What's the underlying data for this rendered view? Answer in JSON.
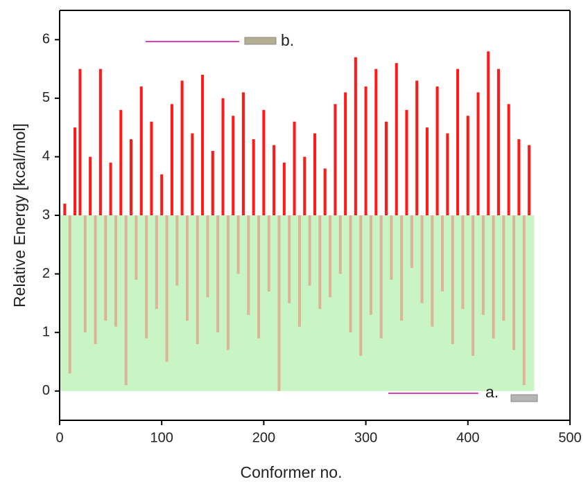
{
  "chart_data": {
    "type": "bar",
    "x_label": "Conformer no.",
    "y_label": "Relative Energy [kcal/mol]",
    "xlim": [
      0,
      500
    ],
    "ylim": [
      -0.5,
      6.5
    ],
    "xticks": [
      0,
      100,
      200,
      300,
      400,
      500
    ],
    "yticks": [
      0,
      1,
      2,
      3,
      4,
      5,
      6
    ],
    "threshold": 3,
    "color_above": "#ff1a1a",
    "color_below": "#dcb496",
    "shaded_region": {
      "xlim": [
        0,
        465
      ],
      "ylim": [
        0,
        3
      ],
      "color": "#c9f5c4"
    },
    "legend": [
      {
        "label": "b.",
        "color": "#b5ad8f",
        "line_color": "#e040c0"
      },
      {
        "label": "a.",
        "color": "#b5b5b5",
        "line_color": "#e040c0"
      }
    ],
    "x": [
      5,
      10,
      15,
      20,
      25,
      30,
      35,
      40,
      45,
      50,
      55,
      60,
      65,
      70,
      75,
      80,
      85,
      90,
      95,
      100,
      105,
      110,
      115,
      120,
      125,
      130,
      135,
      140,
      145,
      150,
      155,
      160,
      165,
      170,
      175,
      180,
      185,
      190,
      195,
      200,
      205,
      210,
      215,
      220,
      225,
      230,
      235,
      240,
      245,
      250,
      255,
      260,
      265,
      270,
      275,
      280,
      285,
      290,
      295,
      300,
      305,
      310,
      315,
      320,
      325,
      330,
      335,
      340,
      345,
      350,
      355,
      360,
      365,
      370,
      375,
      380,
      385,
      390,
      395,
      400,
      405,
      410,
      415,
      420,
      425,
      430,
      435,
      440,
      445,
      450,
      455,
      460
    ],
    "values": [
      3.2,
      0.3,
      4.5,
      5.5,
      1.0,
      4.0,
      0.8,
      5.5,
      1.2,
      3.9,
      1.1,
      4.8,
      0.1,
      4.3,
      1.9,
      5.2,
      0.9,
      4.6,
      1.4,
      3.7,
      0.5,
      4.9,
      1.8,
      5.3,
      1.2,
      4.4,
      0.8,
      5.4,
      1.6,
      4.1,
      1.0,
      5.0,
      0.7,
      4.7,
      2.0,
      5.1,
      1.3,
      4.3,
      0.9,
      4.8,
      1.7,
      4.2,
      0.0,
      3.9,
      1.5,
      4.6,
      1.1,
      4.0,
      1.8,
      4.4,
      1.4,
      3.8,
      1.6,
      4.9,
      2.0,
      5.1,
      1.0,
      5.7,
      0.6,
      5.2,
      1.3,
      5.5,
      0.9,
      4.6,
      1.9,
      5.6,
      1.2,
      4.8,
      2.1,
      5.3,
      1.5,
      4.5,
      1.1,
      5.2,
      1.7,
      4.4,
      0.8,
      5.5,
      1.4,
      4.7,
      0.6,
      5.1,
      1.3,
      5.8,
      0.9,
      5.5,
      1.2,
      4.9,
      0.7,
      4.3,
      0.1,
      4.2
    ]
  }
}
